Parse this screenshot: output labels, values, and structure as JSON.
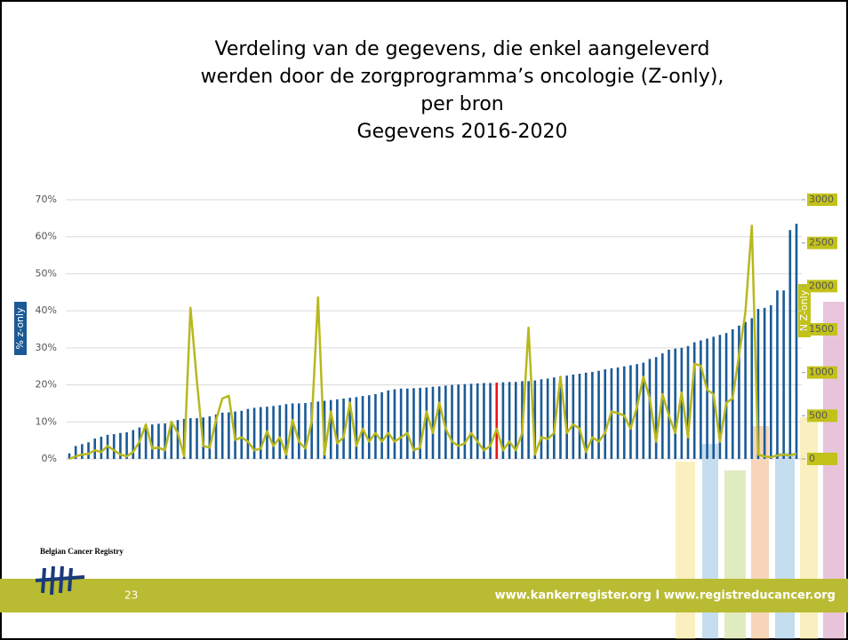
{
  "chart_data": {
    "type": "bar_line",
    "title": [
      "Verdeling van de gegevens, die enkel aangeleverd",
      "werden door de zorgprogramma’s oncologie (Z-only),",
      "per bron",
      "Gegevens 2016-2020"
    ],
    "ylabel": "% z-only",
    "y2label": "N Z-only",
    "ylim": [
      0,
      70
    ],
    "yticks": [
      {
        "value": 0,
        "label": "0%"
      },
      {
        "value": 10,
        "label": "10%"
      },
      {
        "value": 20,
        "label": "20%"
      },
      {
        "value": 30,
        "label": "30%"
      },
      {
        "value": 40,
        "label": "40%"
      },
      {
        "value": 50,
        "label": "50%"
      },
      {
        "value": 60,
        "label": "60%"
      },
      {
        "value": 70,
        "label": "70%"
      }
    ],
    "y2lim": [
      0,
      3000
    ],
    "y2ticks": [
      0,
      500,
      1000,
      1500,
      2000,
      2500,
      3000
    ],
    "grid": true,
    "highlight": {
      "index": 67,
      "color": "#e8141c"
    },
    "series": [
      {
        "kind": "bar",
        "color": "#1a5a96",
        "values": [
          1.5,
          3.5,
          4,
          4.5,
          5.5,
          6,
          6.5,
          6.7,
          7,
          7.2,
          7.8,
          8.5,
          9,
          9.3,
          9.5,
          9.6,
          9.8,
          10.5,
          10.8,
          11,
          11,
          11.2,
          11.5,
          12,
          12.5,
          12.6,
          12.8,
          13,
          13.5,
          13.8,
          14,
          14.1,
          14.3,
          14.5,
          14.8,
          15,
          15,
          15.1,
          15.3,
          15.5,
          15.7,
          15.9,
          16.1,
          16.3,
          16.5,
          16.7,
          17,
          17.2,
          17.5,
          18,
          18.5,
          18.8,
          19,
          19,
          19.1,
          19.2,
          19.3,
          19.5,
          19.6,
          19.8,
          20,
          20.1,
          20.2,
          20.3,
          20.4,
          20.5,
          20.5,
          20.6,
          20.7,
          20.8,
          20.8,
          21,
          21,
          21.2,
          21.5,
          21.7,
          22,
          22.3,
          22.5,
          22.8,
          23,
          23.3,
          23.5,
          23.8,
          24.2,
          24.5,
          24.7,
          25,
          25.3,
          25.6,
          26,
          27,
          27.5,
          28.5,
          29.5,
          29.8,
          30,
          30.5,
          31.5,
          32,
          32.5,
          33,
          33.5,
          34,
          35,
          36,
          37,
          38,
          40.5,
          40.8,
          41.5,
          45.5,
          45.5,
          61.8,
          63.5
        ]
      },
      {
        "kind": "line",
        "axis": "y2",
        "color": "#b8b81e",
        "values": [
          0,
          30,
          50,
          60,
          100,
          80,
          150,
          100,
          50,
          30,
          80,
          200,
          400,
          120,
          130,
          100,
          430,
          300,
          30,
          1750,
          900,
          150,
          130,
          450,
          700,
          730,
          220,
          250,
          200,
          100,
          120,
          320,
          150,
          250,
          50,
          450,
          200,
          120,
          430,
          1870,
          50,
          550,
          180,
          250,
          650,
          150,
          350,
          200,
          300,
          200,
          300,
          200,
          250,
          300,
          100,
          130,
          550,
          300,
          650,
          350,
          200,
          150,
          180,
          300,
          200,
          100,
          150,
          350,
          100,
          200,
          100,
          300,
          1520,
          50,
          250,
          230,
          300,
          950,
          300,
          400,
          350,
          80,
          250,
          200,
          300,
          550,
          530,
          500,
          350,
          600,
          950,
          700,
          200,
          750,
          500,
          300,
          770,
          250,
          1100,
          1080,
          800,
          750,
          200,
          650,
          700,
          1200,
          1700,
          2700,
          50,
          30,
          20,
          40,
          50,
          40,
          60
        ]
      }
    ]
  },
  "footer": {
    "logo": "Belgian Cancer Registry",
    "page": "23",
    "url": "www.kankerregister.org  I  www.registreducancer.org"
  }
}
